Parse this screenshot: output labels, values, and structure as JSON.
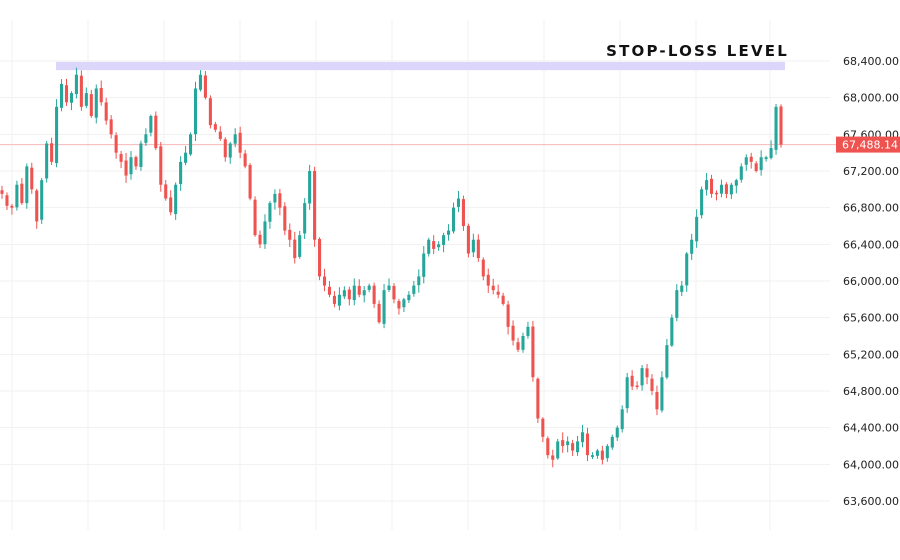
{
  "chart_data": {
    "type": "candlestick",
    "title": "",
    "xlabel": "",
    "ylabel": "",
    "ylim": [
      63400,
      68650
    ],
    "y_ticks": [
      {
        "value": 68400,
        "label": "68,400.00"
      },
      {
        "value": 68000,
        "label": "68,000.00"
      },
      {
        "value": 67600,
        "label": "67,600.00"
      },
      {
        "value": 67200,
        "label": "67,200.00"
      },
      {
        "value": 66800,
        "label": "66,800.00"
      },
      {
        "value": 66400,
        "label": "66,400.00"
      },
      {
        "value": 66000,
        "label": "66,000.00"
      },
      {
        "value": 65600,
        "label": "65,600.00"
      },
      {
        "value": 65200,
        "label": "65,200.00"
      },
      {
        "value": 64800,
        "label": "64,800.00"
      },
      {
        "value": 64400,
        "label": "64,400.00"
      },
      {
        "value": 64000,
        "label": "64,000.00"
      },
      {
        "value": 63600,
        "label": "63,600.00"
      }
    ],
    "current_price": {
      "value": 67488.14,
      "label": "67,488.14"
    },
    "stop_loss_zone": {
      "low": 68300,
      "high": 68390,
      "label": "STOP-LOSS LEVEL"
    },
    "grid": true,
    "colors": {
      "up": "#26a69a",
      "down": "#ef5350",
      "price_tag": "#ef5350",
      "zone": "#ddd6fb",
      "grid": "#f1f1f1"
    },
    "close_path": [
      66950,
      66820,
      66800,
      67050,
      66850,
      67250,
      67000,
      66650,
      67100,
      67500,
      67300,
      67900,
      68150,
      67950,
      68050,
      68250,
      67900,
      68050,
      67800,
      68100,
      67950,
      67750,
      67600,
      67400,
      67300,
      67150,
      67350,
      67250,
      67500,
      67600,
      67800,
      67450,
      67050,
      66900,
      66750,
      67050,
      67300,
      67400,
      67600,
      68100,
      68250,
      68000,
      67700,
      67650,
      67550,
      67350,
      67500,
      67600,
      67400,
      67250,
      66900,
      66500,
      66400,
      66650,
      66850,
      66950,
      66800,
      66550,
      66450,
      66250,
      66500,
      66850,
      67200,
      66450,
      66050,
      65950,
      65850,
      65750,
      65850,
      65900,
      65800,
      65950,
      65850,
      65900,
      65950,
      65750,
      65550,
      65900,
      65950,
      65800,
      65700,
      65800,
      65850,
      65950,
      66050,
      66300,
      66450,
      66350,
      66400,
      66500,
      66550,
      66800,
      66900,
      66600,
      66300,
      66450,
      66250,
      66050,
      65950,
      65900,
      65850,
      65750,
      65500,
      65350,
      65250,
      65400,
      65500,
      64950,
      64500,
      64300,
      64100,
      64050,
      64250,
      64200,
      64250,
      64150,
      64250,
      64350,
      64100,
      64100,
      64150,
      64050,
      64200,
      64300,
      64400,
      64600,
      64950,
      64850,
      64850,
      65050,
      64950,
      64800,
      64600,
      64950,
      65300,
      65600,
      65900,
      65950,
      66300,
      66450,
      66700,
      67000,
      67100,
      66950,
      66950,
      67050,
      66950,
      67050,
      67100,
      67250,
      67350,
      67300,
      67200,
      67350,
      67350,
      67450,
      67900,
      67488.14
    ]
  }
}
